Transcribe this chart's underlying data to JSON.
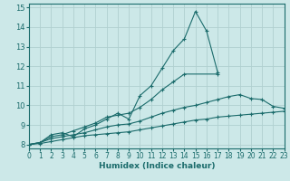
{
  "xlabel": "Humidex (Indice chaleur)",
  "bg_color": "#cce8e8",
  "line_color": "#1a6b6b",
  "grid_color": "#b0d0d0",
  "lines": [
    {
      "x": [
        0,
        1,
        2,
        3,
        4,
        5,
        6,
        7,
        8,
        9,
        10,
        11,
        12,
        13,
        14,
        15,
        16,
        17
      ],
      "y": [
        8.0,
        8.1,
        8.5,
        8.6,
        8.4,
        8.8,
        9.0,
        9.3,
        9.6,
        9.3,
        10.5,
        11.0,
        11.9,
        12.8,
        13.4,
        14.8,
        13.8,
        11.7
      ]
    },
    {
      "x": [
        0,
        1,
        2,
        3,
        4,
        5,
        6,
        7,
        8,
        9,
        10,
        11,
        12,
        13,
        14,
        17
      ],
      "y": [
        8.0,
        8.1,
        8.4,
        8.5,
        8.7,
        8.9,
        9.1,
        9.4,
        9.5,
        9.6,
        9.9,
        10.3,
        10.8,
        11.2,
        11.6,
        11.6
      ]
    },
    {
      "x": [
        0,
        1,
        2,
        3,
        4,
        5,
        6,
        7,
        8,
        9,
        10,
        11,
        12,
        13,
        14,
        15,
        16,
        17,
        18,
        19,
        20,
        21,
        22,
        23
      ],
      "y": [
        8.0,
        8.1,
        8.3,
        8.4,
        8.5,
        8.6,
        8.75,
        8.9,
        9.0,
        9.05,
        9.2,
        9.4,
        9.6,
        9.75,
        9.9,
        10.0,
        10.15,
        10.3,
        10.45,
        10.55,
        10.35,
        10.3,
        9.95,
        9.85
      ]
    },
    {
      "x": [
        0,
        1,
        2,
        3,
        4,
        5,
        6,
        7,
        8,
        9,
        10,
        11,
        12,
        13,
        14,
        15,
        16,
        17,
        18,
        19,
        20,
        21,
        22,
        23
      ],
      "y": [
        8.0,
        8.05,
        8.15,
        8.25,
        8.35,
        8.45,
        8.5,
        8.55,
        8.6,
        8.65,
        8.75,
        8.85,
        8.95,
        9.05,
        9.15,
        9.25,
        9.3,
        9.4,
        9.45,
        9.5,
        9.55,
        9.6,
        9.65,
        9.7
      ]
    }
  ],
  "xlim": [
    0,
    23
  ],
  "ylim": [
    7.8,
    15.2
  ],
  "yticks": [
    8,
    9,
    10,
    11,
    12,
    13,
    14,
    15
  ],
  "xticks": [
    0,
    1,
    2,
    3,
    4,
    5,
    6,
    7,
    8,
    9,
    10,
    11,
    12,
    13,
    14,
    15,
    16,
    17,
    18,
    19,
    20,
    21,
    22,
    23
  ],
  "tick_fontsize": 5.5,
  "xlabel_fontsize": 6.5
}
